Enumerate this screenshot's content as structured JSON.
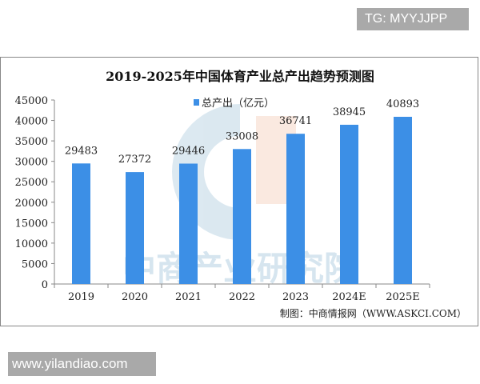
{
  "overlay": {
    "tg_label": "TG: MYYJJPP",
    "site_label": "www.yilandiao.com"
  },
  "chart_data": {
    "type": "bar",
    "title": "2019-2025年中国体育产业总产出趋势预测图",
    "categories": [
      "2019",
      "2020",
      "2021",
      "2022",
      "2023",
      "2024E",
      "2025E"
    ],
    "series": [
      {
        "name": "总产出（亿元）",
        "values": [
          29483,
          27372,
          29446,
          33008,
          36741,
          38945,
          40893
        ],
        "color": "#3c8fe6"
      }
    ],
    "data_labels": [
      "29483",
      "27372",
      "29446",
      "33008",
      "36741",
      "38945",
      "40893"
    ],
    "ylim": [
      0,
      45000
    ],
    "yticks": [
      0,
      5000,
      10000,
      15000,
      20000,
      25000,
      30000,
      35000,
      40000,
      45000
    ],
    "grid": false,
    "legend": "top-center",
    "source": "制图：中商情报网（WWW.ASKCI.COM）",
    "watermark": "中商产业研究院"
  }
}
